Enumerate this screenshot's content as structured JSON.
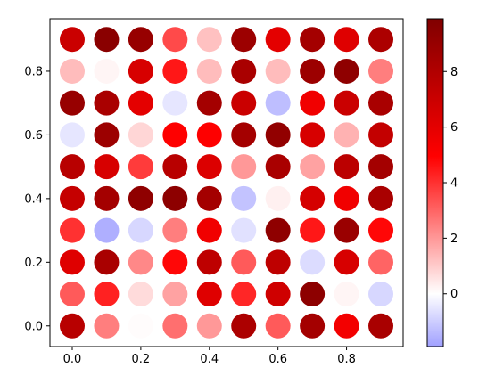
{
  "chart_data": {
    "type": "scatter",
    "title": "",
    "xlabel": "",
    "ylabel": "",
    "xlim": [
      -0.065,
      0.965
    ],
    "ylim": [
      -0.065,
      0.965
    ],
    "x_ticks": [
      0.0,
      0.2,
      0.4,
      0.6,
      0.8
    ],
    "x_tick_labels": [
      "0.0",
      "0.2",
      "0.4",
      "0.6",
      "0.8"
    ],
    "y_ticks": [
      0.0,
      0.2,
      0.4,
      0.6,
      0.8
    ],
    "y_tick_labels": [
      "0.0",
      "0.2",
      "0.4",
      "0.6",
      "0.8"
    ],
    "grid": false,
    "colormap": "seismic",
    "color_range": [
      -1.9,
      9.9
    ],
    "colorbar_ticks": [
      0,
      2,
      4,
      6,
      8
    ],
    "colorbar_tick_labels": [
      "0",
      "2",
      "4",
      "6",
      "8"
    ],
    "x": [
      0.0,
      0.1,
      0.2,
      0.3,
      0.4,
      0.5,
      0.6,
      0.7,
      0.8,
      0.9
    ],
    "y": [
      0.9,
      0.8,
      0.7,
      0.6,
      0.5,
      0.4,
      0.3,
      0.2,
      0.1,
      0.0
    ],
    "values": [
      [
        7,
        9.5,
        9,
        3.5,
        1.2,
        8.8,
        6,
        8.5,
        6.2,
        8.2
      ],
      [
        1.3,
        0.2,
        6.5,
        4.5,
        1.3,
        8.3,
        1.3,
        8.8,
        9.3,
        2.5
      ],
      [
        9,
        8.3,
        6,
        -0.5,
        8.5,
        7,
        -1.3,
        5.5,
        7,
        8.3
      ],
      [
        -0.5,
        8.8,
        0.8,
        5,
        5,
        8.5,
        9.2,
        6.5,
        1.5,
        7.3
      ],
      [
        7.7,
        6.5,
        3.8,
        7.7,
        6.3,
        2,
        8.3,
        1.8,
        7.6,
        8.5
      ],
      [
        7.2,
        8.5,
        9.3,
        9.4,
        8.5,
        -1.2,
        0.3,
        6.6,
        5.5,
        8.3
      ],
      [
        4,
        -1.6,
        -0.8,
        2.5,
        5.5,
        -0.6,
        9.3,
        4.5,
        8.9,
        4.8
      ],
      [
        6.2,
        8.3,
        2.3,
        4.8,
        7.5,
        3.2,
        7.5,
        -0.7,
        6.5,
        3
      ],
      [
        3.2,
        4.3,
        0.7,
        1.8,
        6.2,
        4.2,
        6.8,
        9.4,
        0.2,
        -0.8
      ],
      [
        7.7,
        2.5,
        0.05,
        2.8,
        2,
        8.2,
        3.2,
        8.5,
        5.4,
        8.3
      ]
    ]
  }
}
